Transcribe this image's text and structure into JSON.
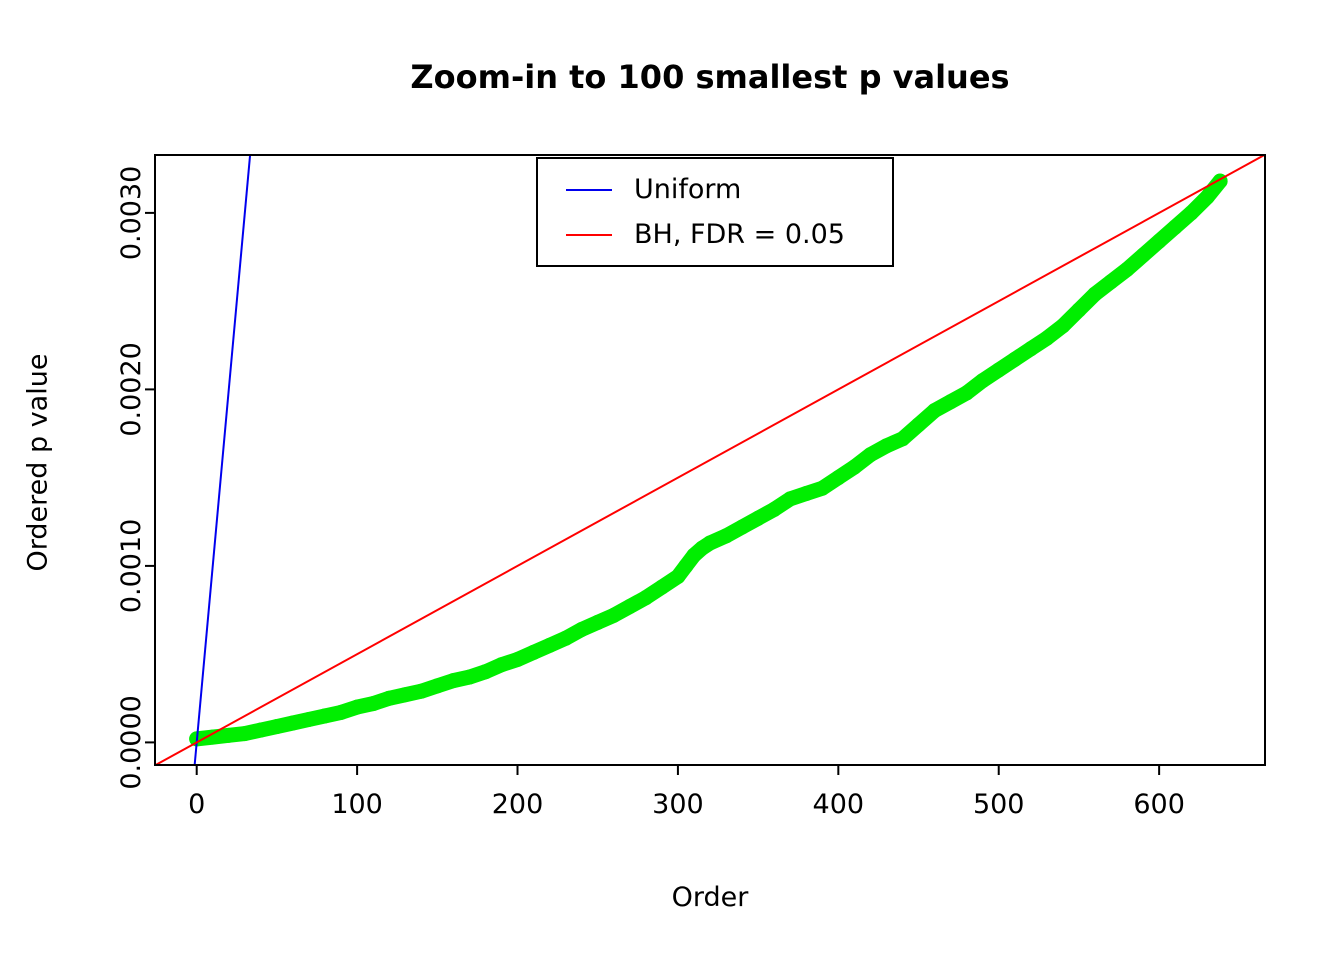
{
  "chart_data": {
    "type": "scatter",
    "title": "Zoom-in to 100 smallest p values",
    "xlabel": "Order",
    "ylabel": "Ordered p value",
    "xlim": [
      -26,
      666
    ],
    "ylim": [
      -0.000128,
      0.003328
    ],
    "x_ticks": [
      0,
      100,
      200,
      300,
      400,
      500,
      600
    ],
    "x_tick_labels": [
      "0",
      "100",
      "200",
      "300",
      "400",
      "500",
      "600"
    ],
    "y_ticks": [
      0.0,
      0.001,
      0.002,
      0.003
    ],
    "y_tick_labels": [
      "0.0000",
      "0.0010",
      "0.0020",
      "0.0030"
    ],
    "grid": false,
    "legend": {
      "position": "top-center",
      "entries": [
        {
          "label": "Uniform",
          "color": "#0000EE"
        },
        {
          "label": "BH, FDR = 0.05",
          "color": "#FF0000"
        }
      ]
    },
    "series": [
      {
        "name": "ordered-p-values",
        "type": "points",
        "color": "#00EE00",
        "size": 7.5,
        "x": [
          0,
          10,
          20,
          30,
          40,
          50,
          60,
          70,
          80,
          90,
          100,
          110,
          120,
          130,
          140,
          150,
          160,
          170,
          180,
          190,
          200,
          210,
          220,
          230,
          240,
          250,
          260,
          270,
          280,
          290,
          300,
          305,
          310,
          315,
          320,
          330,
          340,
          350,
          360,
          370,
          380,
          390,
          400,
          410,
          420,
          430,
          440,
          450,
          460,
          470,
          480,
          490,
          500,
          510,
          520,
          530,
          540,
          550,
          560,
          570,
          580,
          590,
          600,
          610,
          620,
          630,
          638
        ],
        "y": [
          2e-05,
          3e-05,
          4e-05,
          5e-05,
          7e-05,
          9e-05,
          0.00011,
          0.00013,
          0.00015,
          0.00017,
          0.0002,
          0.00022,
          0.00025,
          0.00027,
          0.00029,
          0.00032,
          0.00035,
          0.00037,
          0.0004,
          0.00044,
          0.00047,
          0.00051,
          0.00055,
          0.00059,
          0.00064,
          0.00068,
          0.00072,
          0.00077,
          0.00082,
          0.00088,
          0.00094,
          0.001,
          0.00106,
          0.0011,
          0.00113,
          0.00117,
          0.00122,
          0.00127,
          0.00132,
          0.00138,
          0.00141,
          0.00144,
          0.0015,
          0.00156,
          0.00163,
          0.00168,
          0.00172,
          0.0018,
          0.00188,
          0.00193,
          0.00198,
          0.00205,
          0.00211,
          0.00217,
          0.00223,
          0.00229,
          0.00236,
          0.00245,
          0.00254,
          0.00261,
          0.00268,
          0.00276,
          0.00284,
          0.00292,
          0.003,
          0.00309,
          0.00318
        ]
      },
      {
        "name": "uniform-line",
        "type": "line",
        "color": "#0000EE",
        "width": 2,
        "slope": 0.0001,
        "intercept": 0
      },
      {
        "name": "bh-fdr-line",
        "type": "line",
        "color": "#FF0000",
        "width": 2,
        "slope": 5e-06,
        "intercept": 0
      }
    ]
  }
}
